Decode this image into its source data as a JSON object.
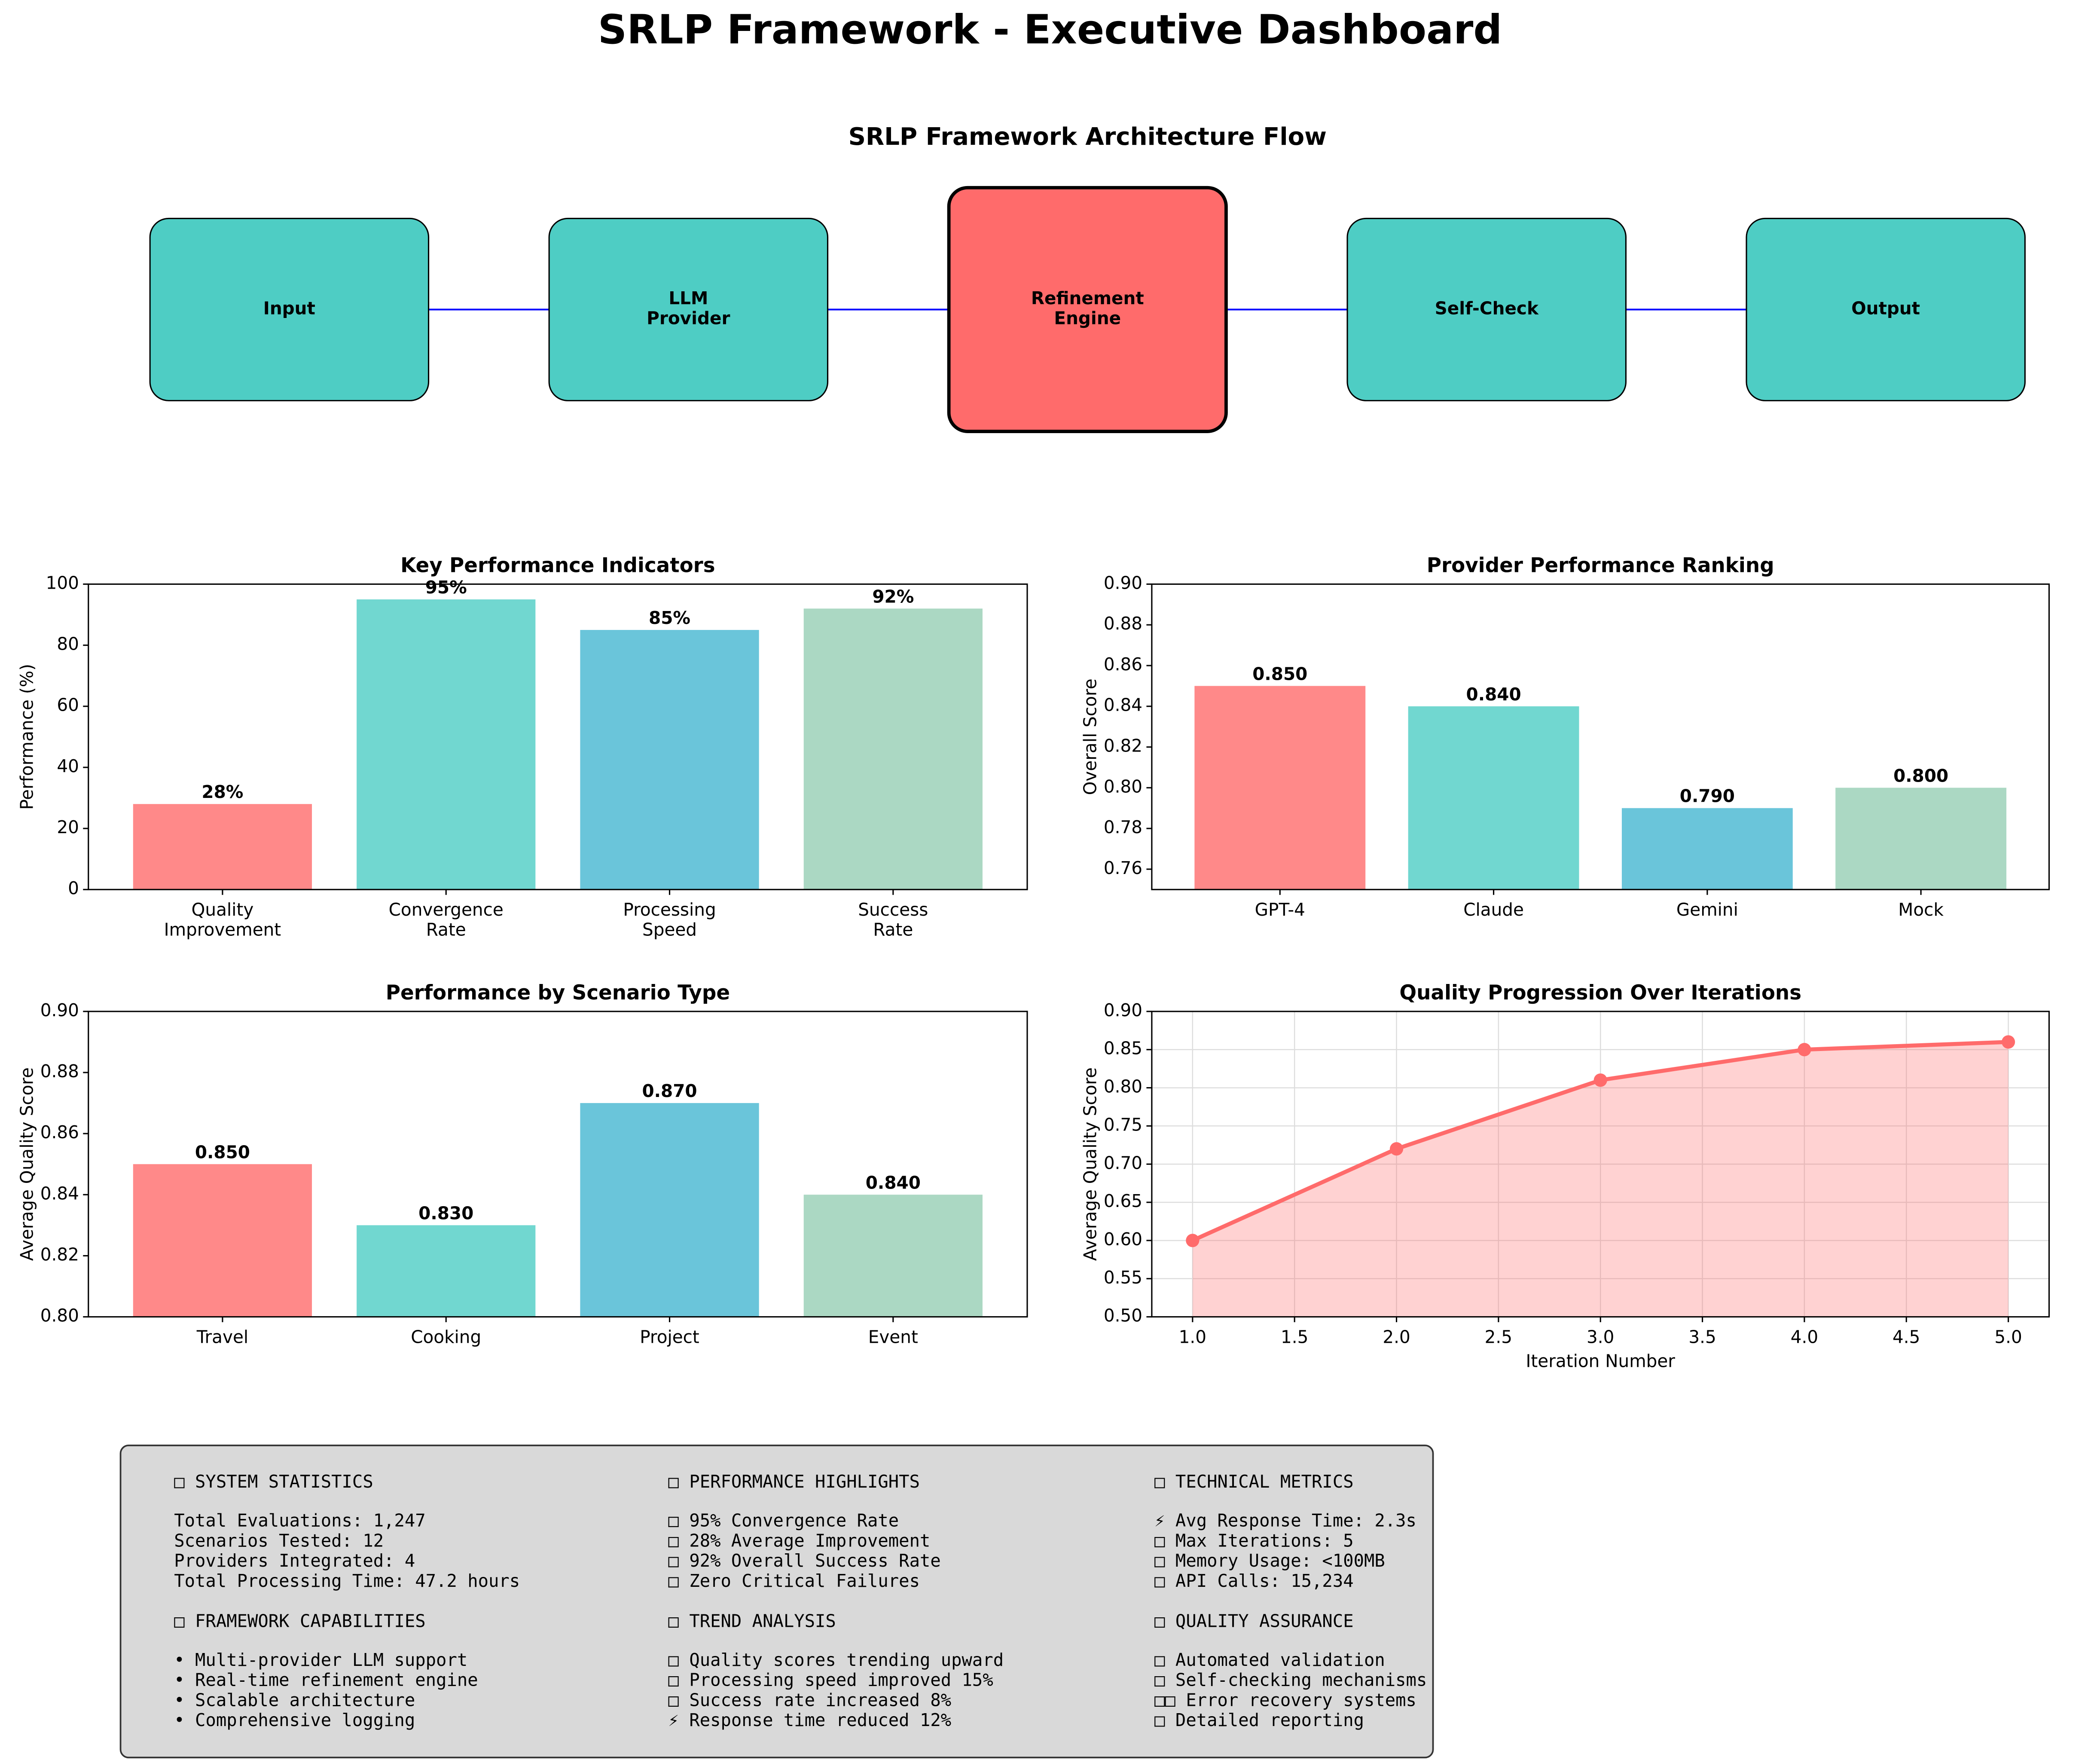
{
  "title": "SRLP Framework - Executive Dashboard",
  "architecture": {
    "title": "SRLP Framework Architecture Flow",
    "nodes": [
      {
        "label": "Input",
        "color": "#4ECDC4"
      },
      {
        "label": "LLM\nProvider",
        "color": "#4ECDC4"
      },
      {
        "label": "Refinement\nEngine",
        "color": "#FF6B6B"
      },
      {
        "label": "Self-Check",
        "color": "#4ECDC4"
      },
      {
        "label": "Output",
        "color": "#4ECDC4"
      }
    ],
    "link_color": "#0000ff"
  },
  "chart_data": [
    {
      "type": "bar",
      "title": "Key Performance Indicators",
      "ylabel": "Performance (%)",
      "categories": [
        "Quality\nImprovement",
        "Convergence\nRate",
        "Processing\nSpeed",
        "Success\nRate"
      ],
      "values": [
        28,
        95,
        85,
        92
      ],
      "value_labels": [
        "28%",
        "95%",
        "85%",
        "92%"
      ],
      "colors": [
        "#FF6B6B",
        "#4ECDC4",
        "#45B7D1",
        "#96CEB4"
      ],
      "ylim": [
        0,
        100
      ],
      "yticks": [
        0,
        20,
        40,
        60,
        80,
        100
      ]
    },
    {
      "type": "bar",
      "title": "Provider Performance Ranking",
      "ylabel": "Overall Score",
      "categories": [
        "GPT-4",
        "Claude",
        "Gemini",
        "Mock"
      ],
      "values": [
        0.85,
        0.84,
        0.79,
        0.8
      ],
      "value_labels": [
        "0.850",
        "0.840",
        "0.790",
        "0.800"
      ],
      "colors": [
        "#FF6B6B",
        "#4ECDC4",
        "#45B7D1",
        "#96CEB4"
      ],
      "ylim": [
        0.75,
        0.9
      ],
      "yticks": [
        0.76,
        0.78,
        {
          "value": 0.8,
          "label": "0.80"
        },
        0.82,
        0.84,
        0.86,
        0.88,
        {
          "value": 0.9,
          "label": "0.90"
        }
      ]
    },
    {
      "type": "bar",
      "title": "Performance by Scenario Type",
      "ylabel": "Average Quality Score",
      "categories": [
        "Travel",
        "Cooking",
        "Project",
        "Event"
      ],
      "values": [
        0.85,
        0.83,
        0.87,
        0.84
      ],
      "value_labels": [
        "0.850",
        "0.830",
        "0.870",
        "0.840"
      ],
      "colors": [
        "#FF6B6B",
        "#4ECDC4",
        "#45B7D1",
        "#96CEB4"
      ],
      "ylim": [
        0.8,
        0.9
      ],
      "yticks": [
        {
          "value": 0.8,
          "label": "0.80"
        },
        0.82,
        0.84,
        0.86,
        0.88,
        {
          "value": 0.9,
          "label": "0.90"
        }
      ]
    },
    {
      "type": "line",
      "title": "Quality Progression Over Iterations",
      "xlabel": "Iteration Number",
      "ylabel": "Average Quality Score",
      "x": [
        1,
        2,
        3,
        4,
        5
      ],
      "values": [
        0.6,
        0.72,
        0.81,
        0.85,
        0.86
      ],
      "color": "#FF6B6B",
      "xlim": [
        0.8,
        5.2
      ],
      "xticks": [
        {
          "value": 1,
          "label": "1.0"
        },
        1.5,
        {
          "value": 2,
          "label": "2.0"
        },
        2.5,
        {
          "value": 3,
          "label": "3.0"
        },
        3.5,
        {
          "value": 4,
          "label": "4.0"
        },
        4.5,
        {
          "value": 5,
          "label": "5.0"
        }
      ],
      "ylim": [
        0.5,
        0.9
      ],
      "yticks": [
        {
          "value": 0.5,
          "label": "0.50"
        },
        0.55,
        {
          "value": 0.6,
          "label": "0.60"
        },
        0.65,
        {
          "value": 0.7,
          "label": "0.70"
        },
        0.75,
        {
          "value": 0.8,
          "label": "0.80"
        },
        0.85,
        {
          "value": 0.9,
          "label": "0.90"
        }
      ],
      "grid": true
    }
  ],
  "stats": {
    "sections": [
      {
        "heading": "□ SYSTEM STATISTICS",
        "lines": [
          "Total Evaluations: 1,247",
          "Scenarios Tested: 12",
          "Providers Integrated: 4",
          "Total Processing Time: 47.2 hours"
        ]
      },
      {
        "heading": "□ PERFORMANCE HIGHLIGHTS",
        "lines": [
          "□ 95% Convergence Rate",
          "□ 28% Average Improvement",
          "□ 92% Overall Success Rate",
          "□ Zero Critical Failures"
        ]
      },
      {
        "heading": "□ TECHNICAL METRICS",
        "lines": [
          "⚡ Avg Response Time: 2.3s",
          "□ Max Iterations: 5",
          "□ Memory Usage: <100MB",
          "□ API Calls: 15,234"
        ]
      },
      {
        "heading": "□ FRAMEWORK CAPABILITIES",
        "lines": [
          "• Multi-provider LLM support",
          "• Real-time refinement engine",
          "• Scalable architecture",
          "• Comprehensive logging"
        ]
      },
      {
        "heading": "□ TREND ANALYSIS",
        "lines": [
          "□ Quality scores trending upward",
          "□ Processing speed improved 15%",
          "□ Success rate increased 8%",
          "⚡ Response time reduced 12%"
        ]
      },
      {
        "heading": "□ QUALITY ASSURANCE",
        "lines": [
          "□ Automated validation",
          "□ Self-checking mechanisms",
          "□□ Error recovery systems",
          "□ Detailed reporting"
        ]
      }
    ]
  }
}
